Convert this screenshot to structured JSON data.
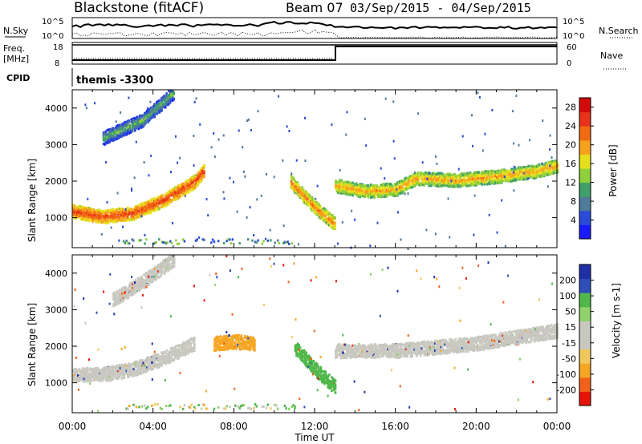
{
  "header": {
    "radar": "Blackstone (fitACF)",
    "beam": "Beam 07",
    "date_range": "03/Sep/2015 - 04/Sep/2015"
  },
  "top_panels": {
    "nsky_label": "N.Sky",
    "nsearch_label": "N.Search",
    "ticks_1e5": "10^5",
    "ticks_1e0": "10^0",
    "freq_label": "Freq.",
    "freq_unit": "[MHz]",
    "freq_ticks": [
      "18",
      "8"
    ],
    "nave_label": "Nave",
    "nave_ticks": [
      "60",
      "0"
    ],
    "cpid_label": "CPID",
    "cpid_value": "themis -3300"
  },
  "time_axis": {
    "xlabel": "Time UT",
    "tick_labels": [
      "00:00",
      "04:00",
      "08:00",
      "12:00",
      "16:00",
      "20:00",
      "00:00"
    ]
  },
  "colors": {
    "power_scale": [
      "#1a1aff",
      "#2a4bd7",
      "#4f7a9a",
      "#3fa06a",
      "#8fcf3a",
      "#e6e01c",
      "#f7a21c",
      "#f26a12",
      "#e8331a",
      "#d40a0a"
    ],
    "velocity_scale": [
      "#e8140a",
      "#f2611a",
      "#f5a623",
      "#f0c75a",
      "#c8c8c0",
      "#c8c8c0",
      "#8fd16a",
      "#4fb84a",
      "#2e4fb8",
      "#1f2fa6"
    ],
    "ground_scatter": "#c8c8c0"
  },
  "chart_data": [
    {
      "type": "heatmap",
      "title": "Power",
      "ylabel": "Slant Range [km]",
      "xlabel": "",
      "ylim": [
        180,
        4500
      ],
      "y_ticks": [
        1000,
        2000,
        3000,
        4000
      ],
      "x": [
        "00:00",
        "04:00",
        "08:00",
        "12:00",
        "16:00",
        "20:00",
        "00:00"
      ],
      "colorbar": {
        "label": "Power [dB]",
        "ticks": [
          4,
          8,
          12,
          16,
          20,
          24,
          28
        ],
        "range": [
          0,
          30
        ]
      },
      "echo_bands": [
        {
          "time_h": [
            0.0,
            1.5,
            3.0,
            4.5,
            6.0,
            6.5
          ],
          "range_km": [
            1200,
            1050,
            1150,
            1500,
            2000,
            2300
          ],
          "power_db": 27
        },
        {
          "time_h": [
            1.5,
            3.5,
            5.0
          ],
          "range_km": [
            3200,
            3700,
            4450
          ],
          "power_db": 14
        },
        {
          "time_h": [
            10.8,
            12.0,
            13.0
          ],
          "range_km": [
            2000,
            1300,
            850
          ],
          "power_db": 24
        },
        {
          "time_h": [
            13.0,
            14.5,
            16.0,
            17.0,
            19.0,
            21.0,
            23.0,
            24.0
          ],
          "range_km": [
            1900,
            1750,
            1800,
            2100,
            2050,
            2150,
            2300,
            2450
          ],
          "power_db": 22
        }
      ]
    },
    {
      "type": "heatmap",
      "title": "Velocity",
      "ylabel": "Slant Range [km]",
      "xlabel": "Time UT",
      "ylim": [
        180,
        4500
      ],
      "y_ticks": [
        1000,
        2000,
        3000,
        4000
      ],
      "x": [
        "00:00",
        "04:00",
        "08:00",
        "12:00",
        "16:00",
        "20:00",
        "00:00"
      ],
      "colorbar": {
        "label": "Velocity [m s-1]",
        "ticks": [
          200,
          100,
          50,
          15,
          -15,
          -50,
          -100,
          -200
        ],
        "range": [
          -250,
          250
        ]
      },
      "echo_bands": [
        {
          "time_h": [
            0.0,
            1.5,
            3.0,
            4.5,
            6.0
          ],
          "range_km": [
            1250,
            1250,
            1400,
            1700,
            2100
          ],
          "velocity_ms": 0
        },
        {
          "time_h": [
            2.0,
            3.5,
            5.0
          ],
          "range_km": [
            3300,
            3800,
            4400
          ],
          "velocity_ms": 0
        },
        {
          "time_h": [
            7.0,
            8.0,
            9.0
          ],
          "range_km": [
            2100,
            2150,
            2100
          ],
          "velocity_ms": -60
        },
        {
          "time_h": [
            11.0,
            12.0,
            13.0
          ],
          "range_km": [
            2000,
            1400,
            900
          ],
          "velocity_ms": 70
        },
        {
          "time_h": [
            13.0,
            16.0,
            20.0,
            24.0
          ],
          "range_km": [
            1900,
            1900,
            2100,
            2450
          ],
          "velocity_ms": 0
        }
      ]
    }
  ]
}
